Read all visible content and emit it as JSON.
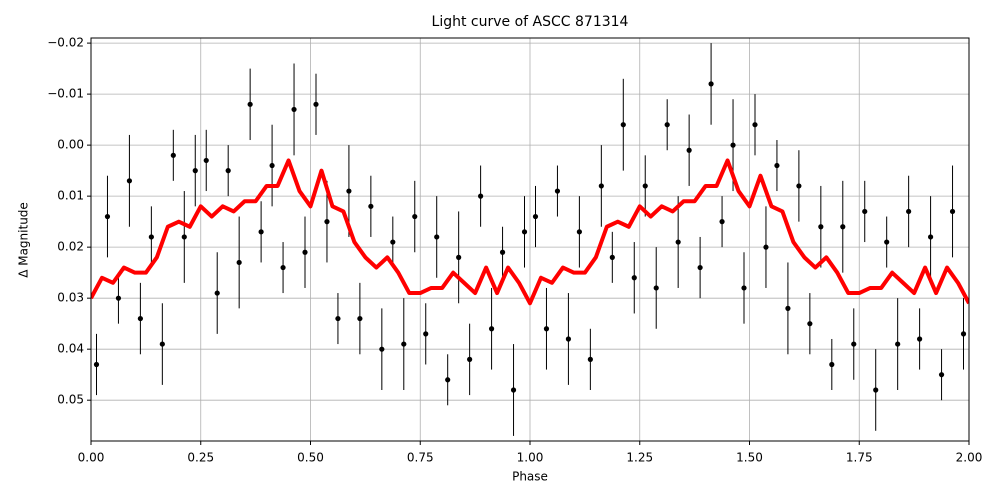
{
  "chart_data": {
    "type": "scatter",
    "title": "Light curve of ASCC 871314",
    "xlabel": "Phase",
    "ylabel": "Δ Magnitude",
    "xlim": [
      0,
      2
    ],
    "ylim": [
      0.058,
      -0.021
    ],
    "y_inverted": true,
    "grid": true,
    "xticks": [
      {
        "value": 0,
        "label": "0.00"
      },
      0.25,
      {
        "value": 0.5,
        "label": "0.50"
      },
      0.75,
      {
        "value": 1,
        "label": "1.00"
      },
      1.25,
      {
        "value": 1.5,
        "label": "1.50"
      },
      1.75,
      {
        "value": 2,
        "label": "2.00"
      }
    ],
    "yticks": [
      {
        "value": -0.02,
        "label": "−0.02"
      },
      {
        "value": -0.01,
        "label": "−0.01"
      },
      {
        "value": 0,
        "label": "0.00"
      },
      0.01,
      0.02,
      0.03,
      0.04,
      0.05
    ],
    "points": {
      "color": "#000000",
      "x": [
        0.0125,
        0.0375,
        0.0625,
        0.0875,
        0.1125,
        0.1375,
        0.1625,
        0.1875,
        0.2125,
        0.2375,
        0.2625,
        0.2875,
        0.3125,
        0.3375,
        0.3625,
        0.3875,
        0.4125,
        0.4375,
        0.4625,
        0.4875,
        0.5125,
        0.5375,
        0.5625,
        0.5875,
        0.6125,
        0.6375,
        0.6625,
        0.6875,
        0.7125,
        0.7375,
        0.7625,
        0.7875,
        0.8125,
        0.8375,
        0.8625,
        0.8875,
        0.9125,
        0.9375,
        0.9625,
        0.9875,
        1.0125,
        1.0375,
        1.0625,
        1.0875,
        1.1125,
        1.1375,
        1.1625,
        1.1875,
        1.2125,
        1.2375,
        1.2625,
        1.2875,
        1.3125,
        1.3375,
        1.3625,
        1.3875,
        1.4125,
        1.4375,
        1.4625,
        1.4875,
        1.5125,
        1.5375,
        1.5625,
        1.5875,
        1.6125,
        1.6375,
        1.6625,
        1.6875,
        1.7125,
        1.7375,
        1.7625,
        1.7875,
        1.8125,
        1.8375,
        1.8625,
        1.8875,
        1.9125,
        1.9375,
        1.9625,
        1.9875
      ],
      "values": [
        0.043,
        0.014,
        0.03,
        0.007,
        0.034,
        0.018,
        0.039,
        0.002,
        0.018,
        0.005,
        0.003,
        0.029,
        0.005,
        0.023,
        -0.008,
        0.017,
        0.004,
        0.024,
        -0.007,
        0.021,
        -0.008,
        0.015,
        0.034,
        0.009,
        0.034,
        0.012,
        0.04,
        0.019,
        0.039,
        0.014,
        0.037,
        0.018,
        0.046,
        0.022,
        0.042,
        0.01,
        0.036,
        0.021,
        0.048,
        0.017,
        0.014,
        0.036,
        0.009,
        0.038,
        0.017,
        0.042,
        0.008,
        0.022,
        -0.004,
        0.026,
        0.008,
        0.028,
        -0.004,
        0.019,
        0.001,
        0.024,
        -0.012,
        0.015,
        0.0,
        0.028,
        -0.004,
        0.02,
        0.004,
        0.032,
        0.008,
        0.035,
        0.016,
        0.043,
        0.016,
        0.039,
        0.013,
        0.048,
        0.019,
        0.039,
        0.013,
        0.038,
        0.018,
        0.045,
        0.013,
        0.037
      ],
      "errors": [
        0.006,
        0.008,
        0.005,
        0.009,
        0.007,
        0.006,
        0.008,
        0.005,
        0.009,
        0.007,
        0.006,
        0.008,
        0.005,
        0.009,
        0.007,
        0.006,
        0.008,
        0.005,
        0.009,
        0.007,
        0.006,
        0.008,
        0.005,
        0.009,
        0.007,
        0.006,
        0.008,
        0.005,
        0.009,
        0.007,
        0.006,
        0.008,
        0.005,
        0.009,
        0.007,
        0.006,
        0.008,
        0.005,
        0.009,
        0.007,
        0.006,
        0.008,
        0.005,
        0.009,
        0.007,
        0.006,
        0.008,
        0.005,
        0.009,
        0.007,
        0.006,
        0.008,
        0.005,
        0.009,
        0.007,
        0.006,
        0.008,
        0.005,
        0.009,
        0.007,
        0.006,
        0.008,
        0.005,
        0.009,
        0.007,
        0.006,
        0.008,
        0.005,
        0.009,
        0.007,
        0.006,
        0.008,
        0.005,
        0.009,
        0.007,
        0.006,
        0.008,
        0.005,
        0.009,
        0.007
      ]
    },
    "model": {
      "color": "#ff0000",
      "x": [
        0,
        0.025,
        0.05,
        0.075,
        0.1,
        0.125,
        0.15,
        0.175,
        0.2,
        0.225,
        0.25,
        0.275,
        0.3,
        0.325,
        0.35,
        0.375,
        0.4,
        0.425,
        0.45,
        0.475,
        0.5,
        0.525,
        0.55,
        0.575,
        0.6,
        0.625,
        0.65,
        0.675,
        0.7,
        0.725,
        0.75,
        0.775,
        0.8,
        0.825,
        0.85,
        0.875,
        0.9,
        0.925,
        0.95,
        0.975,
        1,
        1.025,
        1.05,
        1.075,
        1.1,
        1.125,
        1.15,
        1.175,
        1.2,
        1.225,
        1.25,
        1.275,
        1.3,
        1.325,
        1.35,
        1.375,
        1.4,
        1.425,
        1.45,
        1.475,
        1.5,
        1.525,
        1.55,
        1.575,
        1.6,
        1.625,
        1.65,
        1.675,
        1.7,
        1.725,
        1.75,
        1.775,
        1.8,
        1.825,
        1.85,
        1.875,
        1.9,
        1.925,
        1.95,
        1.975,
        2
      ],
      "values": [
        0.03,
        0.026,
        0.027,
        0.024,
        0.025,
        0.025,
        0.022,
        0.016,
        0.015,
        0.016,
        0.012,
        0.014,
        0.012,
        0.013,
        0.011,
        0.011,
        0.008,
        0.008,
        0.003,
        0.009,
        0.012,
        0.005,
        0.012,
        0.013,
        0.019,
        0.022,
        0.024,
        0.022,
        0.025,
        0.029,
        0.029,
        0.028,
        0.028,
        0.025,
        0.027,
        0.029,
        0.024,
        0.029,
        0.024,
        0.027,
        0.031,
        0.026,
        0.027,
        0.024,
        0.025,
        0.025,
        0.022,
        0.016,
        0.015,
        0.016,
        0.012,
        0.014,
        0.012,
        0.013,
        0.011,
        0.011,
        0.008,
        0.008,
        0.003,
        0.009,
        0.012,
        0.006,
        0.012,
        0.013,
        0.019,
        0.022,
        0.024,
        0.022,
        0.025,
        0.029,
        0.029,
        0.028,
        0.028,
        0.025,
        0.027,
        0.029,
        0.024,
        0.029,
        0.024,
        0.027,
        0.031
      ]
    }
  }
}
